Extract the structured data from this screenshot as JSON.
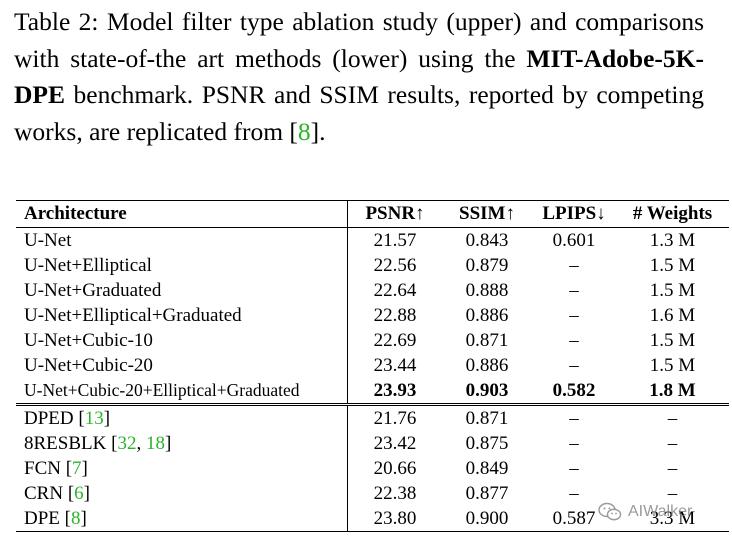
{
  "caption": {
    "part1": "Table 2: Model filter type ablation study (upper) and comparisons with state-of-the art methods (lower) using the ",
    "benchmark": "MIT-Adobe-5K-DPE",
    "part2": " benchmark.  PSNR and SSIM results, reported by competing works, are replicated from [",
    "cite": "8",
    "part3": "]."
  },
  "table": {
    "headers": [
      "Architecture",
      "PSNR↑",
      "SSIM↑",
      "LPIPS↓",
      "# Weights"
    ],
    "ablation_rows": [
      {
        "arch": "U-Net",
        "psnr": "21.57",
        "ssim": "0.843",
        "lpips": "0.601",
        "weights": "1.3 M"
      },
      {
        "arch": "U-Net+Elliptical",
        "psnr": "22.56",
        "ssim": "0.879",
        "lpips": "–",
        "weights": "1.5 M"
      },
      {
        "arch": "U-Net+Graduated",
        "psnr": "22.64",
        "ssim": "0.888",
        "lpips": "–",
        "weights": "1.5 M"
      },
      {
        "arch": "U-Net+Elliptical+Graduated",
        "psnr": "22.88",
        "ssim": "0.886",
        "lpips": "–",
        "weights": "1.6 M"
      },
      {
        "arch": "U-Net+Cubic-10",
        "psnr": "22.69",
        "ssim": "0.871",
        "lpips": "–",
        "weights": "1.5 M"
      },
      {
        "arch": "U-Net+Cubic-20",
        "psnr": "23.44",
        "ssim": "0.886",
        "lpips": "–",
        "weights": "1.5 M"
      },
      {
        "arch": "U-Net+Cubic-20+Elliptical+Graduated",
        "psnr": "23.93",
        "ssim": "0.903",
        "lpips": "0.582",
        "weights": "1.8 M"
      }
    ],
    "comparison_rows": [
      {
        "arch": "DPED [",
        "cites": [
          "13"
        ],
        "psnr": "21.76",
        "ssim": "0.871",
        "lpips": "–",
        "weights": "–"
      },
      {
        "arch": "8RESBLK [",
        "cites": [
          "32",
          "18"
        ],
        "psnr": "23.42",
        "ssim": "0.875",
        "lpips": "–",
        "weights": "–"
      },
      {
        "arch": "FCN [",
        "cites": [
          "7"
        ],
        "psnr": "20.66",
        "ssim": "0.849",
        "lpips": "–",
        "weights": "–"
      },
      {
        "arch": "CRN [",
        "cites": [
          "6"
        ],
        "psnr": "22.38",
        "ssim": "0.877",
        "lpips": "–",
        "weights": "–"
      },
      {
        "arch": "DPE [",
        "cites": [
          "8"
        ],
        "psnr": "23.80",
        "ssim": "0.900",
        "lpips": "0.587",
        "weights": "3.3 M"
      }
    ]
  },
  "watermark": {
    "text": "AIWalker",
    "icon": "wechat-icon"
  },
  "colors": {
    "citation": "#2ab52a"
  }
}
